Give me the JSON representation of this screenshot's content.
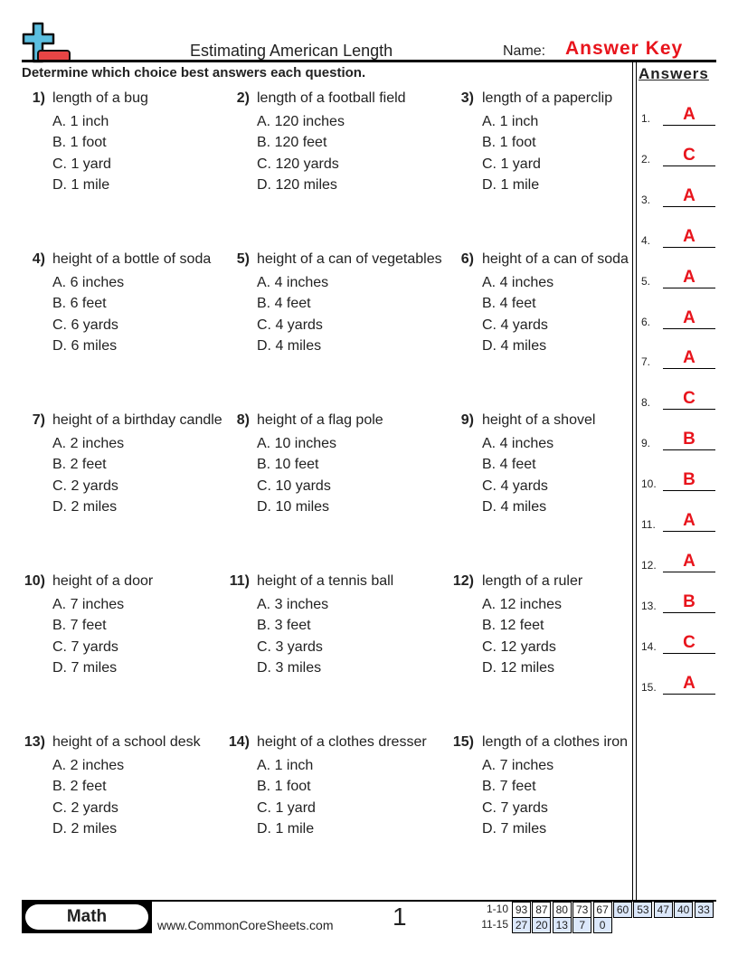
{
  "header": {
    "title": "Estimating American Length",
    "name_label": "Name:",
    "name_value": "Answer Key",
    "instructions": "Determine which choice best answers each question.",
    "logo_icon": "plus-minus-logo-icon",
    "accent_color": "#e8141c"
  },
  "questions": [
    {
      "num": "1)",
      "text": "length of a bug",
      "options": [
        "A. 1 inch",
        "B. 1 foot",
        "C. 1 yard",
        "D. 1 mile"
      ]
    },
    {
      "num": "2)",
      "text": "length of a football field",
      "options": [
        "A. 120 inches",
        "B. 120 feet",
        "C. 120 yards",
        "D. 120 miles"
      ]
    },
    {
      "num": "3)",
      "text": "length of a paperclip",
      "options": [
        "A. 1 inch",
        "B. 1 foot",
        "C. 1 yard",
        "D. 1 mile"
      ]
    },
    {
      "num": "4)",
      "text": "height of a bottle of soda",
      "options": [
        "A. 6 inches",
        "B. 6 feet",
        "C. 6 yards",
        "D. 6 miles"
      ]
    },
    {
      "num": "5)",
      "text": "height of a can of vegetables",
      "options": [
        "A. 4 inches",
        "B. 4 feet",
        "C. 4 yards",
        "D. 4 miles"
      ]
    },
    {
      "num": "6)",
      "text": "height of a can of soda",
      "options": [
        "A. 4 inches",
        "B. 4 feet",
        "C. 4 yards",
        "D. 4 miles"
      ]
    },
    {
      "num": "7)",
      "text": "height of a birthday candle",
      "options": [
        "A. 2 inches",
        "B. 2 feet",
        "C. 2 yards",
        "D. 2 miles"
      ]
    },
    {
      "num": "8)",
      "text": "height of a flag pole",
      "options": [
        "A. 10 inches",
        "B. 10 feet",
        "C. 10 yards",
        "D. 10 miles"
      ]
    },
    {
      "num": "9)",
      "text": "height of a shovel",
      "options": [
        "A. 4 inches",
        "B. 4 feet",
        "C. 4 yards",
        "D. 4 miles"
      ]
    },
    {
      "num": "10)",
      "text": "height of a door",
      "options": [
        "A. 7 inches",
        "B. 7 feet",
        "C. 7 yards",
        "D. 7 miles"
      ]
    },
    {
      "num": "11)",
      "text": "height of a tennis ball",
      "options": [
        "A. 3 inches",
        "B. 3 feet",
        "C. 3 yards",
        "D. 3 miles"
      ]
    },
    {
      "num": "12)",
      "text": "length of a ruler",
      "options": [
        "A. 12 inches",
        "B. 12 feet",
        "C. 12 yards",
        "D. 12 miles"
      ]
    },
    {
      "num": "13)",
      "text": "height of a school desk",
      "options": [
        "A. 2 inches",
        "B. 2 feet",
        "C. 2 yards",
        "D. 2 miles"
      ]
    },
    {
      "num": "14)",
      "text": "height of a clothes dresser",
      "options": [
        "A. 1 inch",
        "B. 1 foot",
        "C. 1 yard",
        "D. 1 mile"
      ]
    },
    {
      "num": "15)",
      "text": "length of a clothes iron",
      "options": [
        "A. 7 inches",
        "B. 7 feet",
        "C. 7 yards",
        "D. 7 miles"
      ]
    }
  ],
  "answers": {
    "heading": "Answers",
    "items": [
      {
        "num": "1.",
        "value": "A"
      },
      {
        "num": "2.",
        "value": "C"
      },
      {
        "num": "3.",
        "value": "A"
      },
      {
        "num": "4.",
        "value": "A"
      },
      {
        "num": "5.",
        "value": "A"
      },
      {
        "num": "6.",
        "value": "A"
      },
      {
        "num": "7.",
        "value": "A"
      },
      {
        "num": "8.",
        "value": "C"
      },
      {
        "num": "9.",
        "value": "B"
      },
      {
        "num": "10.",
        "value": "B"
      },
      {
        "num": "11.",
        "value": "A"
      },
      {
        "num": "12.",
        "value": "A"
      },
      {
        "num": "13.",
        "value": "B"
      },
      {
        "num": "14.",
        "value": "C"
      },
      {
        "num": "15.",
        "value": "A"
      }
    ]
  },
  "footer": {
    "subject": "Math",
    "site": "www.CommonCoreSheets.com",
    "page": "1",
    "score_rows": [
      {
        "label": "1-10",
        "cells": [
          "93",
          "87",
          "80",
          "73",
          "67",
          "60",
          "53",
          "47",
          "40",
          "33"
        ]
      },
      {
        "label": "11-15",
        "cells": [
          "27",
          "20",
          "13",
          "7",
          "0"
        ]
      }
    ]
  }
}
